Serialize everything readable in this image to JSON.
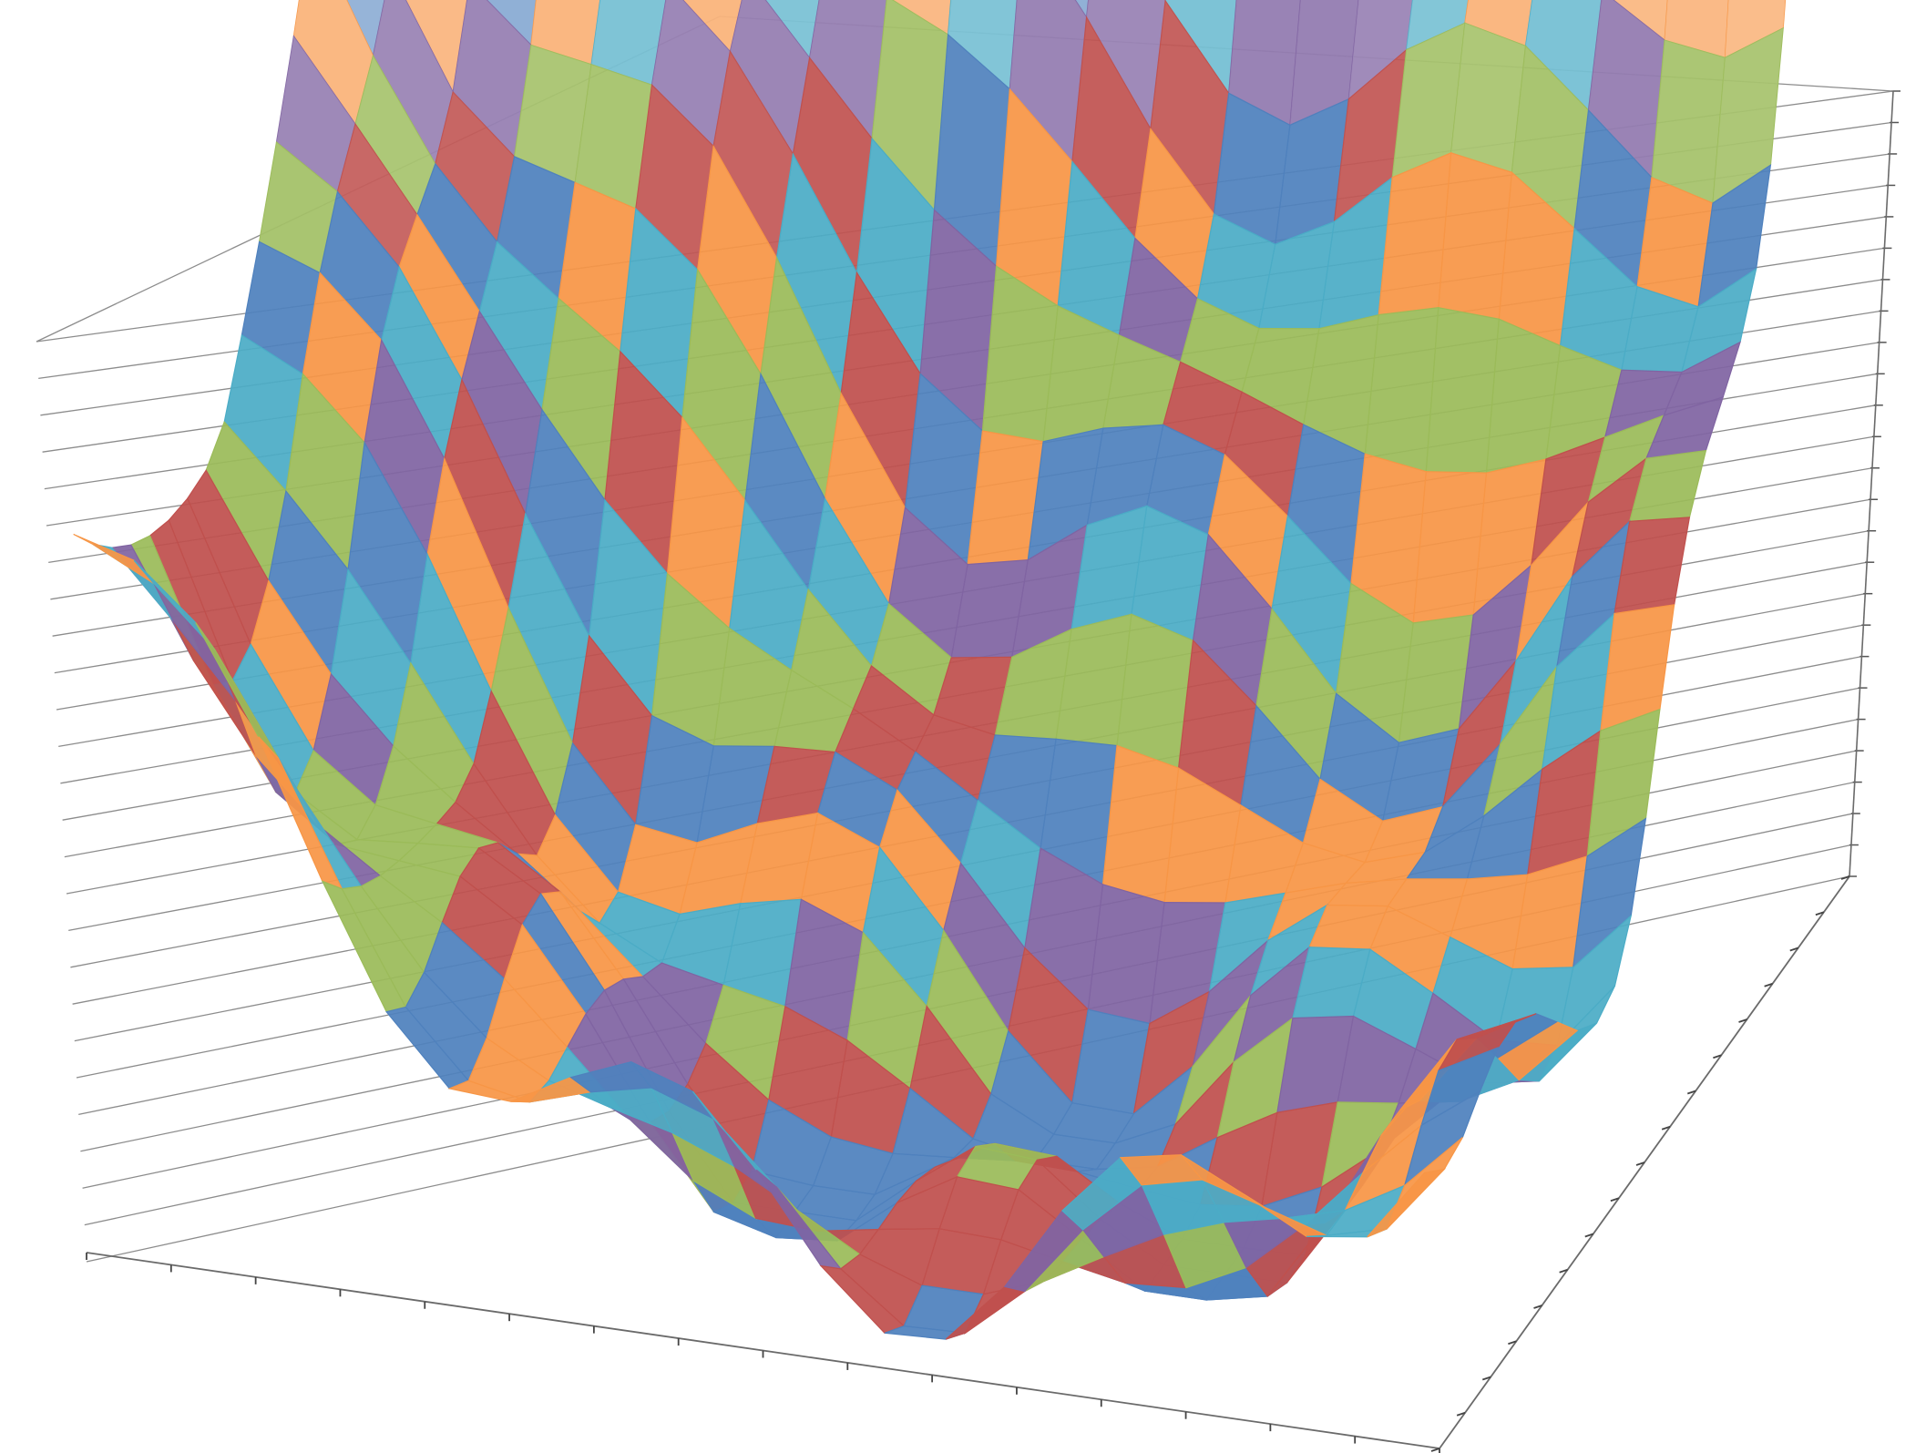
{
  "chart_data": {
    "type": "surface",
    "view": "3d-perspective",
    "grid": true,
    "title": "",
    "xlabel": "",
    "ylabel": "",
    "zlabel": "",
    "tick_labels_visible": false,
    "surface_shape": "bowl",
    "band_count": 26,
    "band_palette": [
      "#4f81bd",
      "#c0504d",
      "#9bbb59",
      "#8064a2",
      "#4bacc6",
      "#f79646"
    ],
    "wall_gridline_count": 26,
    "floor_ticks_front": 16,
    "floor_ticks_side": 16
  }
}
